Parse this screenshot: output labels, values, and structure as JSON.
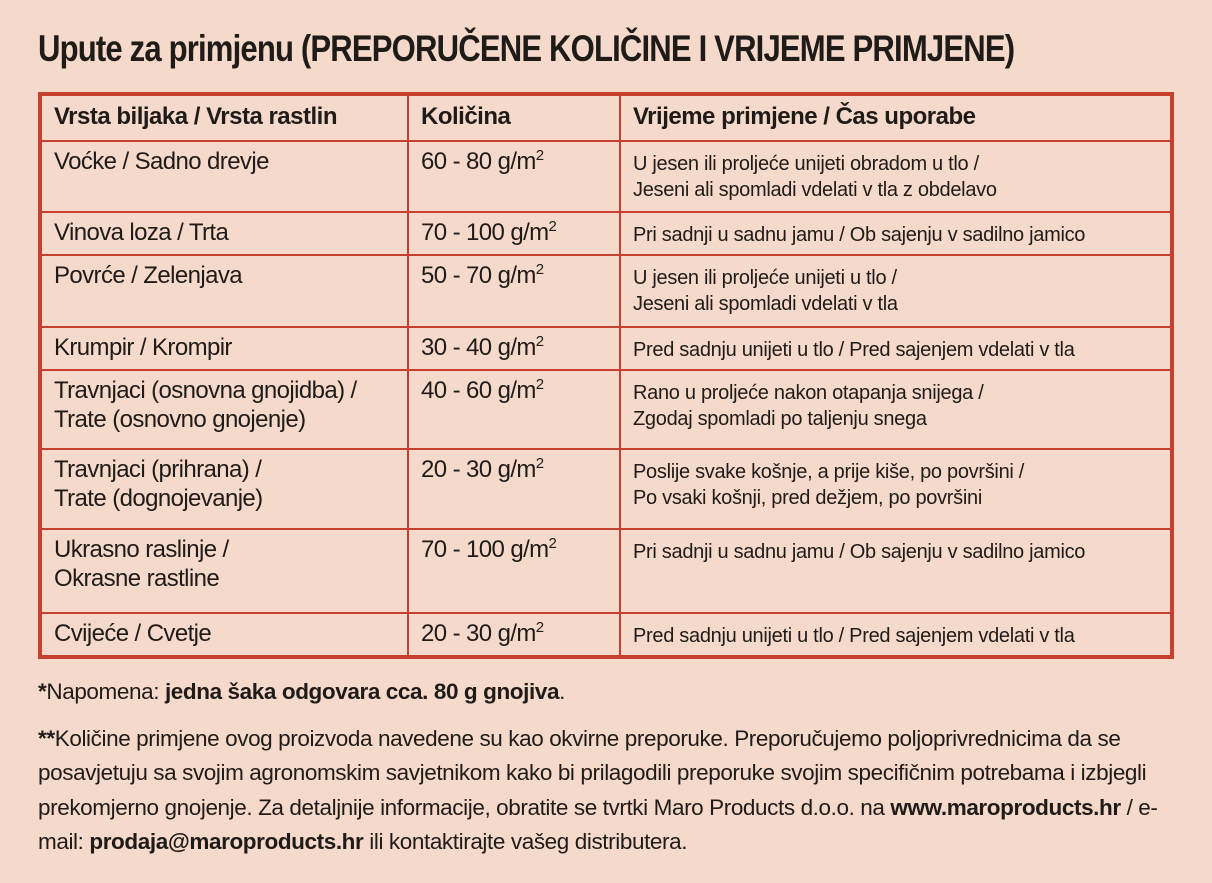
{
  "page": {
    "title": "Upute za primjenu (PREPORUČENE KOLIČINE I VRIJEME PRIMJENE)"
  },
  "colors": {
    "background": "#f5d9cb",
    "table_border_red": "#c5402f",
    "text": "#1f1b18"
  },
  "table": {
    "headers": {
      "plant": "Vrsta biljaka / Vrsta rastlin",
      "amount": "Količina",
      "time": "Vrijeme primjene / Čas uporabe"
    },
    "rows": [
      {
        "plant": "Voćke / Sadno drevje",
        "amount": "60 - 80 g/m",
        "amount_sup": "2",
        "time": "U jesen ili proljeće unijeti obradom u tlo /\nJeseni ali spomladi vdelati v tla z obdelavo"
      },
      {
        "plant": "Vinova loza / Trta",
        "amount": "70 - 100 g/m",
        "amount_sup": "2",
        "time": "Pri sadnji u sadnu jamu / Ob sajenju v sadilno jamico"
      },
      {
        "plant": "Povrće / Zelenjava",
        "amount": "50 - 70 g/m",
        "amount_sup": "2",
        "time": "U jesen ili proljeće unijeti u tlo /\nJeseni ali spomladi vdelati v tla"
      },
      {
        "plant": "Krumpir / Krompir",
        "amount": "30 - 40 g/m",
        "amount_sup": "2",
        "time": "Pred sadnju unijeti u tlo / Pred sajenjem vdelati v tla"
      },
      {
        "plant": "Travnjaci (osnovna gnojidba) /\nTrate (osnovno gnojenje)",
        "amount": "40 - 60 g/m",
        "amount_sup": "2",
        "time": "Rano u proljeće nakon otapanja snijega /\nZgodaj spomladi po taljenju snega"
      },
      {
        "plant": "Travnjaci (prihrana) /\nTrate (dognojevanje)",
        "amount": "20 - 30 g/m",
        "amount_sup": "2",
        "time": "Poslije svake košnje, a prije kiše, po površini /\nPo vsaki košnji, pred dežjem, po površini"
      },
      {
        "plant": "Ukrasno raslinje /\nOkrasne rastline",
        "amount": "70 - 100 g/m",
        "amount_sup": "2",
        "time": "Pri sadnji u sadnu jamu / Ob sajenju v sadilno jamico"
      },
      {
        "plant": "Cvijeće / Cvetje",
        "amount": "20 - 30 g/m",
        "amount_sup": "2",
        "time": "Pred sadnju unijeti u tlo / Pred sajenjem vdelati v tla"
      }
    ]
  },
  "notes": {
    "note1": {
      "marker": "*",
      "label": "Napomena: ",
      "bold": "jedna šaka odgovara cca. 80 g gnojiva",
      "suffix": "."
    },
    "note2": {
      "marker": "**",
      "text_1": "Količine primjene ovog proizvoda navedene su kao okvirne preporuke. Preporučujemo poljoprivrednicima da se posavjetuju sa svojim agronomskim savjetnikom kako bi prilagodili preporuke svojim specifičnim potrebama i izbjegli prekomjerno gnojenje. Za detaljnije informacije, obratite se tvrtki Maro Products d.o.o. na ",
      "bold_web": "www.maroproducts.hr",
      "text_2": " / e-mail: ",
      "bold_email": "prodaja@maroproducts.hr",
      "text_3": " ili kontaktirajte vašeg distributera."
    }
  }
}
